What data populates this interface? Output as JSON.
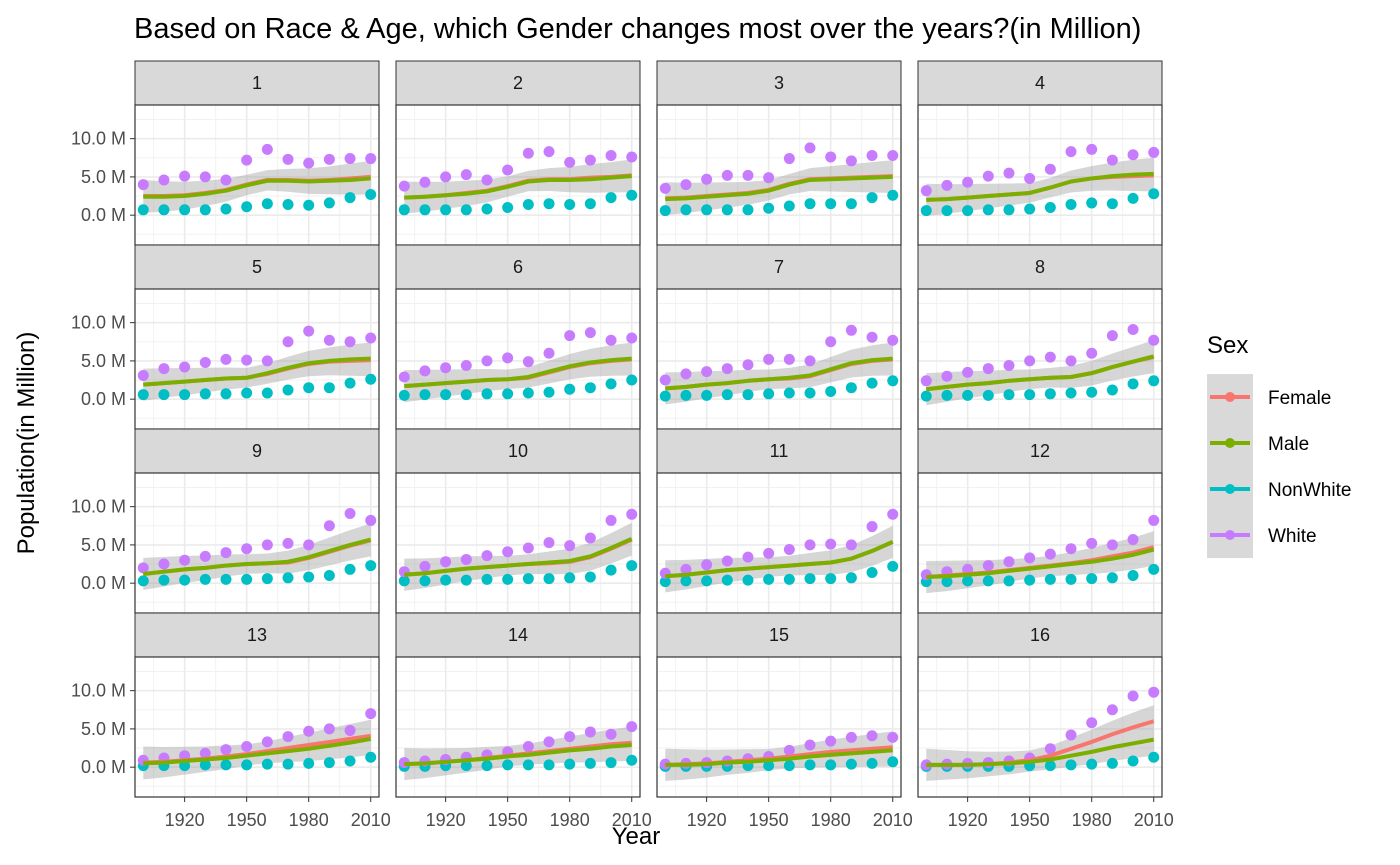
{
  "chart_data": {
    "type": "scatter",
    "title": "Based on Race & Age, which Gender changes most over the years?(in Million)",
    "xlabel": "Year",
    "ylabel": "Population(in Million)",
    "x_ticks": [
      1920,
      1950,
      1980,
      2010
    ],
    "y_ticks": [
      {
        "value": 0,
        "label": "0.0 M"
      },
      {
        "value": 5,
        "label": "5.0 M"
      },
      {
        "value": 10,
        "label": "10.0 M"
      }
    ],
    "xlim": [
      1896,
      2014
    ],
    "ylim": [
      -3.9,
      14.4
    ],
    "grid": true,
    "legend": {
      "title": "Sex",
      "position": "right",
      "entries": [
        {
          "name": "Female",
          "color": "#F8766D"
        },
        {
          "name": "Male",
          "color": "#7CAE00"
        },
        {
          "name": "NonWhite",
          "color": "#00BFC4"
        },
        {
          "name": "White",
          "color": "#C77CFF"
        }
      ]
    },
    "smooth_color_female": "#F8766D",
    "smooth_color_male": "#7CAE00",
    "x": [
      1900,
      1910,
      1920,
      1930,
      1940,
      1950,
      1960,
      1970,
      1980,
      1990,
      2000,
      2010
    ],
    "facets": [
      {
        "label": "1",
        "white": [
          4.0,
          4.6,
          5.1,
          5.0,
          4.6,
          7.2,
          8.6,
          7.3,
          6.8,
          7.3,
          7.4,
          7.4
        ],
        "nonwhite": [
          0.7,
          0.7,
          0.7,
          0.7,
          0.8,
          1.1,
          1.5,
          1.4,
          1.3,
          1.6,
          2.3,
          2.7
        ],
        "female_fit": [
          2.5,
          2.5,
          2.6,
          2.9,
          3.3,
          4.0,
          4.6,
          4.6,
          4.5,
          4.6,
          4.8,
          5.0
        ],
        "male_fit": [
          2.4,
          2.4,
          2.5,
          2.8,
          3.2,
          3.9,
          4.5,
          4.5,
          4.4,
          4.5,
          4.6,
          4.8
        ]
      },
      {
        "label": "2",
        "white": [
          3.8,
          4.3,
          5.0,
          5.3,
          4.6,
          5.9,
          8.1,
          8.3,
          6.9,
          7.2,
          7.8,
          7.6
        ],
        "nonwhite": [
          0.7,
          0.7,
          0.7,
          0.7,
          0.8,
          1.0,
          1.4,
          1.5,
          1.4,
          1.5,
          2.3,
          2.6
        ],
        "female_fit": [
          2.3,
          2.4,
          2.6,
          2.9,
          3.2,
          3.8,
          4.5,
          4.7,
          4.7,
          4.9,
          5.0,
          5.2
        ],
        "male_fit": [
          2.3,
          2.4,
          2.6,
          2.8,
          3.1,
          3.7,
          4.4,
          4.6,
          4.6,
          4.7,
          4.9,
          5.1
        ]
      },
      {
        "label": "3",
        "white": [
          3.5,
          4.0,
          4.7,
          5.2,
          5.2,
          4.9,
          7.4,
          8.8,
          7.6,
          7.1,
          7.8,
          7.8
        ],
        "nonwhite": [
          0.6,
          0.7,
          0.7,
          0.7,
          0.7,
          0.9,
          1.2,
          1.5,
          1.5,
          1.5,
          2.3,
          2.6
        ],
        "female_fit": [
          2.2,
          2.3,
          2.5,
          2.7,
          2.9,
          3.3,
          4.1,
          4.7,
          4.8,
          4.9,
          5.0,
          5.1
        ],
        "male_fit": [
          2.1,
          2.2,
          2.4,
          2.6,
          2.8,
          3.2,
          4.0,
          4.6,
          4.7,
          4.8,
          4.9,
          5.0
        ]
      },
      {
        "label": "4",
        "white": [
          3.2,
          3.9,
          4.3,
          5.1,
          5.5,
          4.8,
          6.0,
          8.3,
          8.6,
          7.2,
          7.9,
          8.2
        ],
        "nonwhite": [
          0.6,
          0.6,
          0.6,
          0.7,
          0.7,
          0.8,
          1.0,
          1.4,
          1.6,
          1.5,
          2.2,
          2.8
        ],
        "female_fit": [
          2.0,
          2.1,
          2.3,
          2.5,
          2.7,
          2.9,
          3.6,
          4.4,
          4.8,
          5.0,
          5.1,
          5.2
        ],
        "male_fit": [
          2.0,
          2.1,
          2.3,
          2.5,
          2.7,
          2.9,
          3.6,
          4.4,
          4.8,
          5.1,
          5.3,
          5.4
        ]
      },
      {
        "label": "5",
        "white": [
          3.1,
          4.0,
          4.2,
          4.8,
          5.2,
          5.1,
          5.0,
          7.5,
          8.9,
          7.7,
          7.5,
          8.0
        ],
        "nonwhite": [
          0.6,
          0.6,
          0.6,
          0.7,
          0.7,
          0.8,
          0.8,
          1.2,
          1.5,
          1.5,
          2.1,
          2.6
        ],
        "female_fit": [
          1.9,
          2.1,
          2.3,
          2.5,
          2.7,
          2.8,
          3.3,
          4.0,
          4.6,
          4.9,
          5.0,
          5.1
        ],
        "male_fit": [
          1.9,
          2.1,
          2.3,
          2.5,
          2.7,
          2.8,
          3.4,
          4.1,
          4.7,
          5.0,
          5.2,
          5.3
        ]
      },
      {
        "label": "6",
        "white": [
          2.9,
          3.7,
          4.1,
          4.4,
          5.0,
          5.4,
          4.9,
          6.0,
          8.3,
          8.7,
          7.7,
          8.0
        ],
        "nonwhite": [
          0.5,
          0.6,
          0.6,
          0.6,
          0.7,
          0.7,
          0.8,
          0.9,
          1.3,
          1.5,
          2.0,
          2.5
        ],
        "female_fit": [
          1.7,
          1.9,
          2.1,
          2.3,
          2.5,
          2.6,
          2.8,
          3.5,
          4.2,
          4.7,
          5.0,
          5.2
        ],
        "male_fit": [
          1.7,
          1.9,
          2.1,
          2.3,
          2.5,
          2.6,
          2.9,
          3.6,
          4.3,
          4.8,
          5.1,
          5.3
        ]
      },
      {
        "label": "7",
        "white": [
          2.5,
          3.3,
          3.6,
          4.0,
          4.5,
          5.2,
          5.2,
          5.0,
          7.5,
          9.0,
          8.1,
          7.7
        ],
        "nonwhite": [
          0.4,
          0.5,
          0.5,
          0.6,
          0.6,
          0.7,
          0.8,
          0.8,
          1.0,
          1.5,
          2.1,
          2.4
        ],
        "female_fit": [
          1.4,
          1.6,
          1.9,
          2.1,
          2.4,
          2.6,
          2.7,
          3.0,
          3.8,
          4.6,
          5.0,
          5.2
        ],
        "male_fit": [
          1.4,
          1.6,
          1.9,
          2.1,
          2.4,
          2.6,
          2.8,
          3.1,
          3.9,
          4.7,
          5.1,
          5.3
        ]
      },
      {
        "label": "8",
        "white": [
          2.4,
          3.0,
          3.5,
          4.0,
          4.4,
          5.0,
          5.5,
          5.0,
          6.0,
          8.3,
          9.1,
          7.7
        ],
        "nonwhite": [
          0.4,
          0.5,
          0.5,
          0.5,
          0.6,
          0.6,
          0.7,
          0.8,
          0.9,
          1.2,
          2.0,
          2.4
        ],
        "female_fit": [
          1.3,
          1.6,
          1.9,
          2.1,
          2.4,
          2.6,
          2.8,
          2.9,
          3.4,
          4.2,
          4.9,
          5.5
        ],
        "male_fit": [
          1.3,
          1.6,
          1.9,
          2.1,
          2.4,
          2.6,
          2.8,
          2.9,
          3.4,
          4.2,
          4.9,
          5.6
        ]
      },
      {
        "label": "9",
        "white": [
          2.0,
          2.5,
          3.0,
          3.5,
          4.0,
          4.5,
          5.0,
          5.2,
          5.0,
          7.5,
          9.1,
          8.2
        ],
        "nonwhite": [
          0.3,
          0.4,
          0.4,
          0.5,
          0.5,
          0.5,
          0.6,
          0.7,
          0.8,
          1.0,
          1.8,
          2.3
        ],
        "female_fit": [
          1.2,
          1.5,
          1.8,
          2.0,
          2.3,
          2.5,
          2.6,
          2.7,
          3.3,
          4.1,
          4.9,
          5.6
        ],
        "male_fit": [
          1.2,
          1.5,
          1.8,
          2.0,
          2.3,
          2.5,
          2.6,
          2.8,
          3.4,
          4.2,
          5.0,
          5.7
        ]
      },
      {
        "label": "10",
        "white": [
          1.5,
          2.2,
          2.8,
          3.1,
          3.6,
          4.1,
          4.6,
          5.3,
          4.9,
          5.9,
          8.2,
          9.0
        ],
        "nonwhite": [
          0.3,
          0.3,
          0.4,
          0.4,
          0.5,
          0.5,
          0.6,
          0.6,
          0.7,
          0.8,
          1.7,
          2.3
        ],
        "female_fit": [
          1.1,
          1.3,
          1.6,
          1.9,
          2.1,
          2.3,
          2.5,
          2.6,
          2.8,
          3.4,
          4.5,
          5.7
        ],
        "male_fit": [
          1.1,
          1.3,
          1.6,
          1.9,
          2.1,
          2.3,
          2.5,
          2.7,
          2.9,
          3.5,
          4.6,
          5.8
        ]
      },
      {
        "label": "11",
        "white": [
          1.3,
          1.8,
          2.4,
          2.9,
          3.4,
          3.9,
          4.4,
          5.0,
          5.1,
          5.0,
          7.4,
          9.0
        ],
        "nonwhite": [
          0.2,
          0.3,
          0.3,
          0.4,
          0.4,
          0.5,
          0.5,
          0.6,
          0.6,
          0.7,
          1.4,
          2.2
        ],
        "female_fit": [
          0.9,
          1.1,
          1.4,
          1.7,
          1.9,
          2.1,
          2.3,
          2.5,
          2.7,
          3.2,
          4.2,
          5.4
        ],
        "male_fit": [
          0.9,
          1.1,
          1.4,
          1.7,
          1.9,
          2.1,
          2.3,
          2.5,
          2.7,
          3.2,
          4.2,
          5.4
        ]
      },
      {
        "label": "12",
        "white": [
          1.1,
          1.5,
          1.8,
          2.3,
          2.8,
          3.3,
          3.8,
          4.5,
          5.2,
          5.0,
          5.7,
          8.2
        ],
        "nonwhite": [
          0.2,
          0.2,
          0.3,
          0.3,
          0.3,
          0.4,
          0.5,
          0.5,
          0.6,
          0.7,
          1.0,
          1.8
        ],
        "female_fit": [
          0.8,
          1.0,
          1.2,
          1.4,
          1.7,
          2.0,
          2.3,
          2.6,
          3.0,
          3.5,
          4.0,
          4.7
        ],
        "male_fit": [
          0.8,
          0.9,
          1.1,
          1.3,
          1.6,
          1.9,
          2.2,
          2.5,
          2.8,
          3.2,
          3.7,
          4.4
        ]
      },
      {
        "label": "13",
        "white": [
          0.9,
          1.2,
          1.5,
          1.8,
          2.3,
          2.7,
          3.3,
          4.0,
          4.7,
          5.0,
          4.8,
          7.0
        ],
        "nonwhite": [
          0.2,
          0.2,
          0.2,
          0.3,
          0.3,
          0.3,
          0.4,
          0.4,
          0.5,
          0.6,
          0.8,
          1.3
        ],
        "female_fit": [
          0.6,
          0.7,
          0.9,
          1.1,
          1.4,
          1.7,
          2.1,
          2.5,
          2.9,
          3.3,
          3.7,
          4.1
        ],
        "male_fit": [
          0.5,
          0.6,
          0.8,
          1.0,
          1.2,
          1.5,
          1.8,
          2.1,
          2.4,
          2.8,
          3.2,
          3.7
        ]
      },
      {
        "label": "14",
        "white": [
          0.6,
          0.8,
          1.0,
          1.3,
          1.6,
          2.0,
          2.7,
          3.3,
          4.0,
          4.6,
          4.3,
          5.3
        ],
        "nonwhite": [
          0.1,
          0.1,
          0.2,
          0.2,
          0.2,
          0.3,
          0.3,
          0.3,
          0.4,
          0.5,
          0.6,
          0.9
        ],
        "female_fit": [
          0.4,
          0.5,
          0.7,
          0.9,
          1.2,
          1.5,
          1.8,
          2.1,
          2.4,
          2.7,
          3.0,
          3.2
        ],
        "male_fit": [
          0.4,
          0.5,
          0.7,
          0.9,
          1.1,
          1.4,
          1.6,
          1.9,
          2.2,
          2.4,
          2.7,
          2.9
        ]
      },
      {
        "label": "15",
        "white": [
          0.4,
          0.5,
          0.6,
          0.8,
          1.1,
          1.4,
          2.2,
          2.9,
          3.4,
          3.9,
          4.1,
          3.9
        ],
        "nonwhite": [
          0.1,
          0.1,
          0.1,
          0.1,
          0.2,
          0.2,
          0.2,
          0.3,
          0.3,
          0.4,
          0.5,
          0.7
        ],
        "female_fit": [
          0.3,
          0.4,
          0.5,
          0.7,
          0.9,
          1.1,
          1.4,
          1.7,
          2.0,
          2.2,
          2.4,
          2.6
        ],
        "male_fit": [
          0.3,
          0.3,
          0.4,
          0.6,
          0.7,
          0.9,
          1.1,
          1.4,
          1.6,
          1.8,
          2.0,
          2.2
        ]
      },
      {
        "label": "16",
        "white": [
          0.3,
          0.4,
          0.5,
          0.6,
          0.8,
          1.2,
          2.4,
          4.2,
          5.8,
          7.5,
          9.3,
          9.8
        ],
        "nonwhite": [
          0.1,
          0.1,
          0.1,
          0.1,
          0.1,
          0.2,
          0.2,
          0.3,
          0.4,
          0.5,
          0.8,
          1.3
        ],
        "female_fit": [
          0.3,
          0.3,
          0.3,
          0.4,
          0.6,
          0.9,
          1.5,
          2.4,
          3.3,
          4.3,
          5.2,
          6.0
        ],
        "male_fit": [
          0.3,
          0.3,
          0.3,
          0.4,
          0.5,
          0.7,
          1.0,
          1.5,
          2.0,
          2.6,
          3.1,
          3.6
        ]
      }
    ]
  }
}
